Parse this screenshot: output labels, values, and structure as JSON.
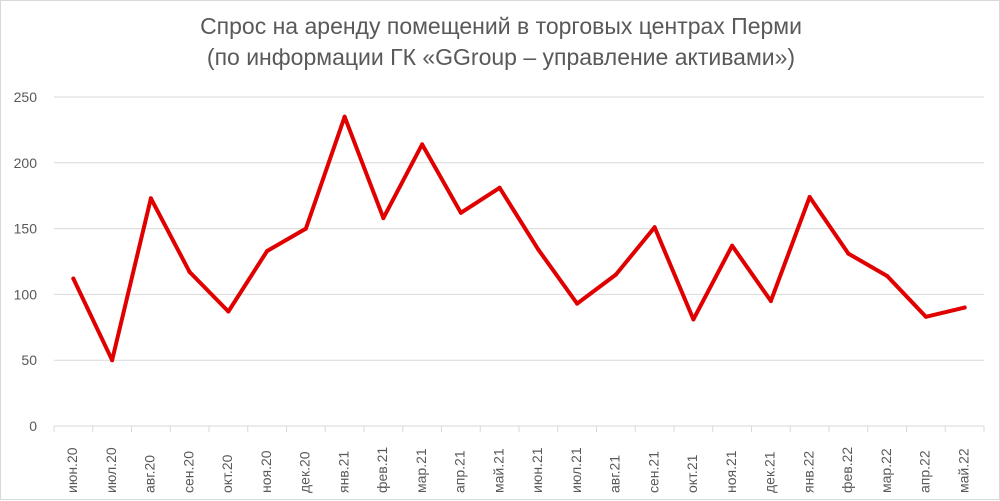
{
  "chart": {
    "title_line1": "Спрос на аренду помещений в торговых центрах Перми",
    "title_line2": "(по информации ГК «GGroup – управление активами»)"
  },
  "colors": {
    "series": "#e00000",
    "grid": "#d9d9d9",
    "text": "#595959"
  },
  "chart_data": {
    "type": "line",
    "title": "Спрос на аренду помещений в торговых центрах Перми (по информации ГК «GGroup – управление активами»)",
    "xlabel": "",
    "ylabel": "",
    "categories": [
      "июн.20",
      "июл.20",
      "авг.20",
      "сен.20",
      "окт.20",
      "ноя.20",
      "дек.20",
      "янв.21",
      "фев.21",
      "мар.21",
      "апр.21",
      "май.21",
      "июн.21",
      "июл.21",
      "авг.21",
      "сен.21",
      "окт.21",
      "ноя.21",
      "дек.21",
      "янв.22",
      "фев.22",
      "мар.22",
      "апр.22",
      "май.22"
    ],
    "series": [
      {
        "values": [
          112,
          50,
          173,
          117,
          87,
          133,
          150,
          235,
          158,
          214,
          162,
          181,
          134,
          93,
          115,
          151,
          81,
          137,
          95,
          174,
          131,
          114,
          83,
          90
        ]
      }
    ],
    "ylim": [
      0,
      250
    ],
    "yticks": [
      0,
      50,
      100,
      150,
      200,
      250
    ],
    "grid": true,
    "legend": "none"
  }
}
